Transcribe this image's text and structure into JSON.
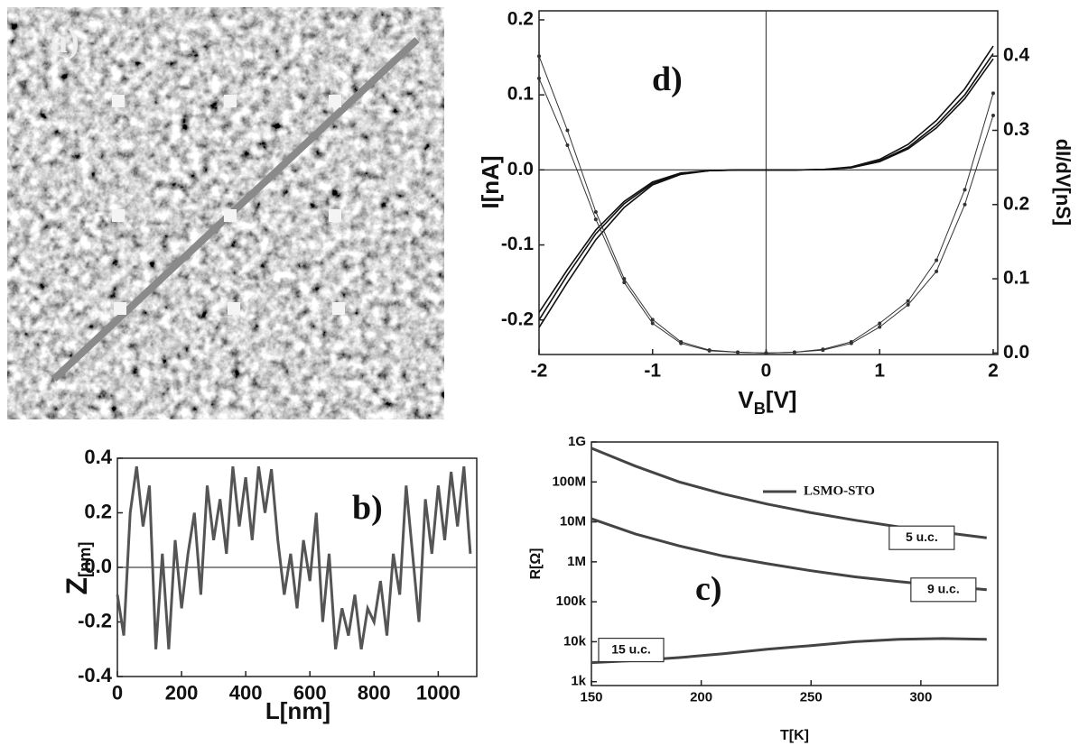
{
  "image_panel": {
    "label": "a)"
  },
  "chart_data": [
    {
      "type": "line",
      "annotation": "b)",
      "x_label": "L[nm]",
      "y_label": "Z",
      "y_label_unit": "[nm]",
      "x": [
        0,
        20,
        40,
        60,
        80,
        100,
        120,
        140,
        160,
        180,
        200,
        220,
        240,
        260,
        280,
        300,
        320,
        340,
        360,
        380,
        400,
        420,
        440,
        460,
        480,
        500,
        520,
        540,
        560,
        580,
        600,
        620,
        640,
        660,
        680,
        700,
        720,
        740,
        760,
        780,
        800,
        820,
        840,
        860,
        880,
        900,
        920,
        940,
        960,
        980,
        1000,
        1020,
        1040,
        1060,
        1080,
        1100
      ],
      "series": [
        {
          "color": "#555555",
          "values": [
            -0.1,
            -0.25,
            0.2,
            0.37,
            0.15,
            0.3,
            -0.3,
            0.05,
            -0.3,
            0.1,
            -0.15,
            0.05,
            0.2,
            -0.1,
            0.3,
            0.1,
            0.25,
            0.05,
            0.37,
            0.15,
            0.33,
            0.1,
            0.37,
            0.2,
            0.36,
            0.1,
            -0.1,
            0.05,
            -0.15,
            0.1,
            -0.05,
            0.2,
            -0.2,
            0.05,
            -0.3,
            -0.15,
            -0.25,
            -0.1,
            -0.3,
            -0.15,
            -0.2,
            -0.05,
            -0.25,
            0.05,
            -0.1,
            0.3,
            0.05,
            -0.2,
            0.25,
            0.05,
            0.3,
            0.1,
            0.35,
            0.15,
            0.37,
            0.05
          ]
        }
      ],
      "xlim": [
        0,
        1120
      ],
      "xticks": [
        0,
        200,
        400,
        600,
        800,
        1000
      ],
      "ylim": [
        -0.4,
        0.4
      ],
      "yticks": [
        -0.4,
        -0.2,
        {
          "value": 0,
          "label": "0.0"
        },
        0.2,
        0.4
      ],
      "zero_lines": true
    },
    {
      "type": "line",
      "annotation": "c)",
      "x_label": "T[K]",
      "y_label": "R[Ω]",
      "log_y": true,
      "legend": "LSMO-STO",
      "x": [
        150,
        170,
        190,
        210,
        230,
        250,
        270,
        290,
        310,
        330
      ],
      "series": [
        {
          "name": "5 u.c.",
          "color": "#444444",
          "values": [
            700000000,
            250000000,
            100000000,
            50000000,
            28000000,
            17000000,
            11000000,
            7500000,
            5500000,
            4000000
          ]
        },
        {
          "name": "9 u.c.",
          "color": "#444444",
          "values": [
            12000000,
            5000000,
            2500000,
            1400000,
            900000,
            600000,
            420000,
            320000,
            250000,
            200000
          ]
        },
        {
          "name": "15 u.c.",
          "color": "#444444",
          "values": [
            3000,
            3400,
            4000,
            5000,
            6500,
            8000,
            10000,
            11500,
            12000,
            11500
          ]
        }
      ],
      "xlim": [
        150,
        335
      ],
      "xticks": [
        150,
        200,
        250,
        300
      ],
      "ylim": [
        800,
        1000000000
      ],
      "yticks": [
        {
          "value": 1000,
          "label": "1k"
        },
        {
          "value": 10000,
          "label": "10k"
        },
        {
          "value": 100000,
          "label": "100k"
        },
        {
          "value": 1000000,
          "label": "1M"
        },
        {
          "value": 10000000,
          "label": "10M"
        },
        {
          "value": 100000000,
          "label": "100M"
        },
        {
          "value": 1000000000,
          "label": "1G"
        }
      ]
    },
    {
      "type": "line",
      "annotation": "d)",
      "x_label": "V",
      "x_label_sub": "B",
      "x_label_unit": "[V]",
      "y_label": "I[nA]",
      "y2_label": "dI/dV[nS]",
      "x": [
        -2,
        -1.75,
        -1.5,
        -1.25,
        -1,
        -0.75,
        -0.5,
        -0.25,
        0,
        0.25,
        0.5,
        0.75,
        1,
        1.25,
        1.5,
        1.75,
        2
      ],
      "series": [
        {
          "color": "#111111",
          "values": [
            -0.2,
            -0.14,
            -0.085,
            -0.045,
            -0.018,
            -0.005,
            -0.001,
            0,
            0,
            0,
            0.0005,
            0.003,
            0.012,
            0.03,
            0.06,
            0.1,
            0.155
          ]
        },
        {
          "color": "#111111",
          "values": [
            -0.21,
            -0.15,
            -0.093,
            -0.05,
            -0.02,
            -0.006,
            -0.001,
            0,
            0,
            0,
            0.0006,
            0.004,
            0.014,
            0.034,
            0.066,
            0.108,
            0.165
          ]
        },
        {
          "color": "#111111",
          "values": [
            -0.19,
            -0.133,
            -0.08,
            -0.042,
            -0.016,
            -0.004,
            -0.001,
            0,
            0,
            0,
            0.0004,
            0.003,
            0.011,
            0.028,
            0.056,
            0.095,
            0.148
          ]
        },
        {
          "color": "#333333",
          "axis": "y2",
          "markers": true,
          "values": [
            0.4,
            0.3,
            0.19,
            0.1,
            0.045,
            0.015,
            0.004,
            0.001,
            0,
            0.001,
            0.004,
            0.013,
            0.035,
            0.065,
            0.11,
            0.2,
            0.32
          ]
        },
        {
          "color": "#333333",
          "axis": "y2",
          "markers": true,
          "values": [
            0.37,
            0.28,
            0.18,
            0.095,
            0.04,
            0.013,
            0.003,
            0.001,
            0,
            0.001,
            0.005,
            0.015,
            0.04,
            0.07,
            0.125,
            0.22,
            0.35
          ]
        }
      ],
      "xlim": [
        -2,
        2.04
      ],
      "xticks": [
        -2,
        -1,
        0,
        1,
        2
      ],
      "ylim": [
        -0.246,
        0.212
      ],
      "yticks": [
        -0.2,
        -0.1,
        {
          "value": 0,
          "label": "0.0"
        },
        0.1,
        0.2
      ],
      "y2lim": [
        -0.002,
        0.461
      ],
      "y2ticks": [
        {
          "value": 0,
          "label": "0.0"
        },
        0.1,
        0.2,
        0.3,
        0.4
      ],
      "zero_lines": true
    }
  ]
}
